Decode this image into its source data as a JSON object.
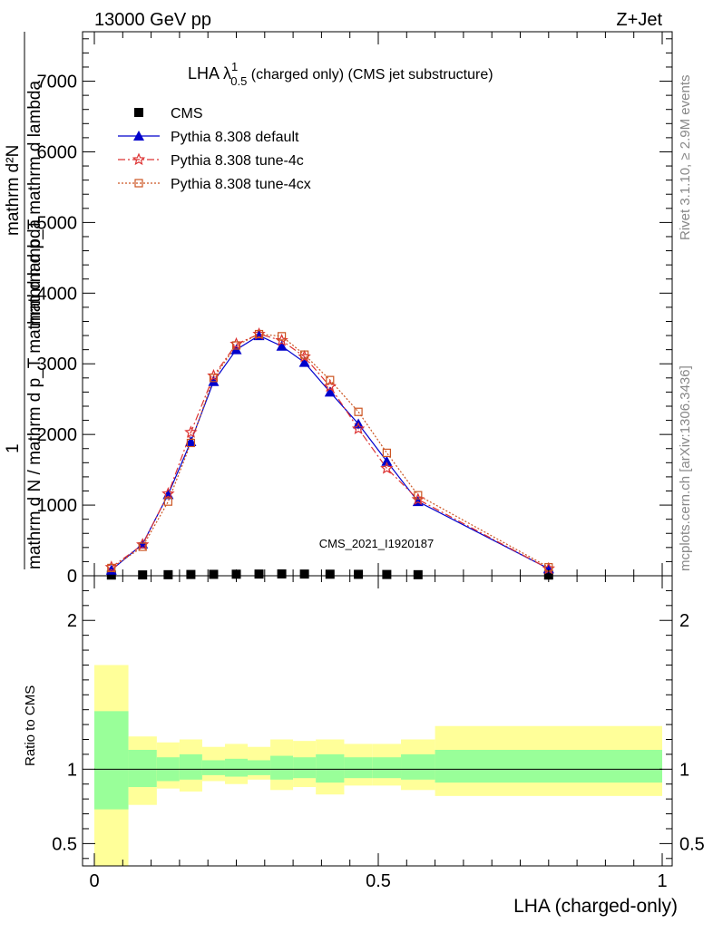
{
  "header": {
    "left": "13000 GeV pp",
    "right": "Z+Jet"
  },
  "side_labels": {
    "rivet": "Rivet 3.1.10, ≥ 2.9M events",
    "mcplots": "mcplots.cern.ch [arXiv:1306.3436]"
  },
  "plot_title": {
    "prefix": "LHA λ",
    "sup": "1",
    "sub": "0.5",
    "rest": " (charged only) (CMS jet substructure)"
  },
  "watermark": "CMS_2021_I1920187",
  "ylabel_main": {
    "numerator": "1",
    "denominator": "mathrm d N / mathrm d p_T mathrm d lambda",
    "upper": "mathrm d²N",
    "upper2": "mathrm d p_T mathrm d lambda",
    "fraction_text": "mathrm d p_T mathrm d lambda"
  },
  "ylabel_ratio": "Ratio to CMS",
  "xlabel": "LHA (charged-only)",
  "legend": [
    {
      "label": "CMS",
      "color": "#000000",
      "marker": "square-filled",
      "line": "none"
    },
    {
      "label": "Pythia 8.308 default",
      "color": "#0000cc",
      "marker": "triangle-filled",
      "line": "solid"
    },
    {
      "label": "Pythia 8.308 tune-4c",
      "color": "#dd3333",
      "marker": "star",
      "line": "dashdot"
    },
    {
      "label": "Pythia 8.308 tune-4cx",
      "color": "#cc5522",
      "marker": "square-open",
      "line": "dotted"
    }
  ],
  "chart_data": {
    "type": "line",
    "xlim": [
      0,
      1
    ],
    "ylim_main": [
      0,
      7700
    ],
    "ylim_ratio": [
      0.35,
      2.3
    ],
    "x_ticks": [
      {
        "v": 0,
        "label": "0"
      },
      {
        "v": 0.5,
        "label": "0.5"
      },
      {
        "v": 1,
        "label": "1"
      }
    ],
    "y_ticks_main": [
      {
        "v": 0,
        "label": "0"
      },
      {
        "v": 1000,
        "label": "1000"
      },
      {
        "v": 2000,
        "label": "2000"
      },
      {
        "v": 3000,
        "label": "3000"
      },
      {
        "v": 4000,
        "label": "4000"
      },
      {
        "v": 5000,
        "label": "5000"
      },
      {
        "v": 6000,
        "label": "6000"
      },
      {
        "v": 7000,
        "label": "7000"
      }
    ],
    "y_ticks_ratio": [
      {
        "v": 0.5,
        "label": "0.5"
      },
      {
        "v": 1,
        "label": "1"
      },
      {
        "v": 2,
        "label": "2"
      }
    ],
    "bins": [
      [
        0,
        0.06
      ],
      [
        0.06,
        0.11
      ],
      [
        0.11,
        0.15
      ],
      [
        0.15,
        0.19
      ],
      [
        0.19,
        0.23
      ],
      [
        0.23,
        0.27
      ],
      [
        0.27,
        0.31
      ],
      [
        0.31,
        0.35
      ],
      [
        0.35,
        0.39
      ],
      [
        0.39,
        0.44
      ],
      [
        0.44,
        0.49
      ],
      [
        0.49,
        0.54
      ],
      [
        0.54,
        0.6
      ],
      [
        0.6,
        1.0
      ]
    ],
    "series": [
      {
        "name": "CMS",
        "x": [
          0.03,
          0.085,
          0.13,
          0.17,
          0.21,
          0.25,
          0.29,
          0.33,
          0.37,
          0.415,
          0.465,
          0.515,
          0.57,
          0.8
        ],
        "values": [
          10,
          12,
          15,
          18,
          20,
          22,
          24,
          26,
          24,
          22,
          20,
          18,
          15,
          10
        ]
      },
      {
        "name": "Pythia 8.308 default",
        "x": [
          0.03,
          0.085,
          0.13,
          0.17,
          0.21,
          0.25,
          0.29,
          0.33,
          0.37,
          0.415,
          0.465,
          0.515,
          0.57,
          0.8
        ],
        "values": [
          80,
          450,
          1150,
          1900,
          2750,
          3200,
          3400,
          3250,
          3020,
          2600,
          2150,
          1620,
          1050,
          100
        ]
      },
      {
        "name": "Pythia 8.308 tune-4c",
        "x": [
          0.03,
          0.085,
          0.13,
          0.17,
          0.21,
          0.25,
          0.29,
          0.33,
          0.37,
          0.415,
          0.465,
          0.515,
          0.57,
          0.8
        ],
        "values": [
          120,
          440,
          1160,
          2030,
          2830,
          3280,
          3420,
          3330,
          3100,
          2680,
          2080,
          1520,
          1080,
          100
        ]
      },
      {
        "name": "Pythia 8.308 tune-4cx",
        "x": [
          0.03,
          0.085,
          0.13,
          0.17,
          0.21,
          0.25,
          0.29,
          0.33,
          0.37,
          0.415,
          0.465,
          0.515,
          0.57,
          0.8
        ],
        "values": [
          110,
          410,
          1050,
          1880,
          2800,
          3260,
          3420,
          3390,
          3130,
          2770,
          2320,
          1740,
          1140,
          120
        ]
      }
    ],
    "ratio_bands": {
      "outer_low": [
        0.3,
        0.76,
        0.87,
        0.85,
        0.92,
        0.9,
        0.93,
        0.86,
        0.88,
        0.83,
        0.89,
        0.89,
        0.86,
        0.82
      ],
      "outer_high": [
        1.7,
        1.22,
        1.18,
        1.2,
        1.15,
        1.17,
        1.15,
        1.2,
        1.19,
        1.2,
        1.17,
        1.17,
        1.2,
        1.29
      ],
      "inner_low": [
        0.73,
        0.88,
        0.92,
        0.93,
        0.96,
        0.95,
        0.96,
        0.93,
        0.94,
        0.91,
        0.94,
        0.94,
        0.93,
        0.91
      ],
      "inner_high": [
        1.39,
        1.13,
        1.08,
        1.1,
        1.06,
        1.07,
        1.06,
        1.09,
        1.08,
        1.1,
        1.08,
        1.08,
        1.1,
        1.13
      ]
    }
  },
  "colors": {
    "band_outer": "#ffff99",
    "band_inner": "#99ff99"
  }
}
